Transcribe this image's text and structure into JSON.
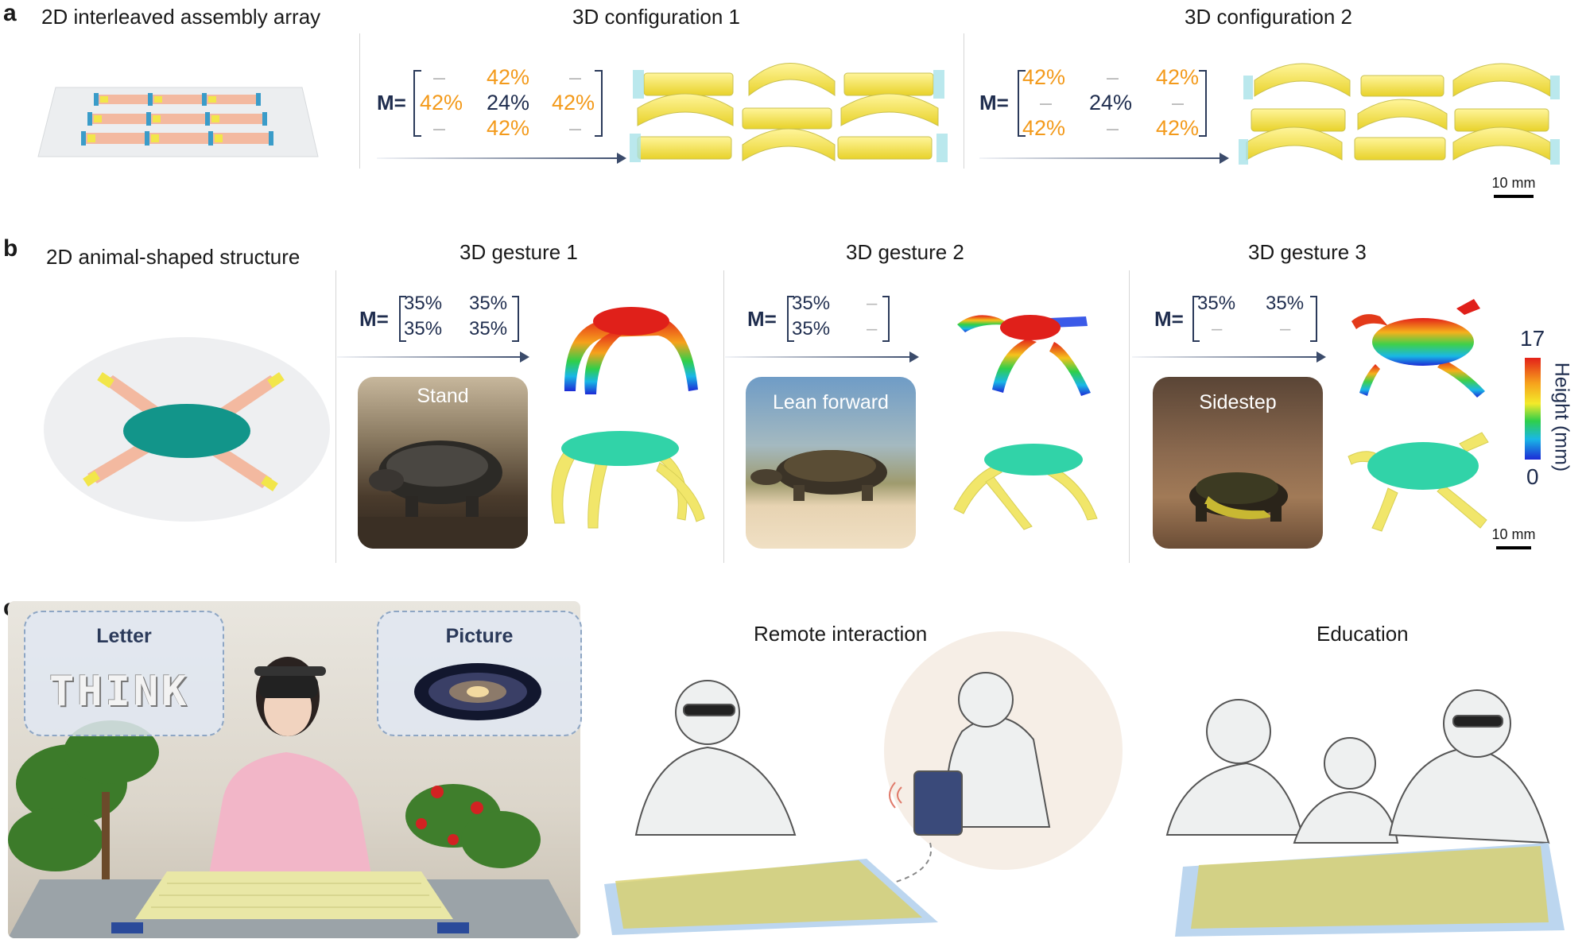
{
  "panels": {
    "a": {
      "letter": "a",
      "title_2d": "2D interleaved assembly array",
      "config1": {
        "title": "3D configuration 1",
        "m_label": "M=",
        "cells": [
          "–",
          "42%",
          "–",
          "42%",
          "24%",
          "42%",
          "–",
          "42%",
          "–"
        ]
      },
      "config2": {
        "title": "3D configuration 2",
        "m_label": "M=",
        "cells": [
          "42%",
          "–",
          "42%",
          "–",
          "24%",
          "–",
          "42%",
          "–",
          "42%"
        ]
      },
      "scale": "10 mm"
    },
    "b": {
      "letter": "b",
      "title_2d": "2D animal-shaped structure",
      "gesture1": {
        "title": "3D gesture 1",
        "m_label": "M=",
        "cells": [
          "35%",
          "35%",
          "35%",
          "35%"
        ],
        "photo_label": "Stand"
      },
      "gesture2": {
        "title": "3D gesture 2",
        "m_label": "M=",
        "cells": [
          "35%",
          "–",
          "35%",
          "–"
        ],
        "photo_label": "Lean forward"
      },
      "gesture3": {
        "title": "3D gesture 3",
        "m_label": "M=",
        "cells": [
          "35%",
          "35%",
          "–",
          "–"
        ],
        "photo_label": "Sidestep"
      },
      "colorbar": {
        "max": "17",
        "min": "0",
        "label": "Height (mm)"
      },
      "scale": "10 mm"
    },
    "c": {
      "letter": "c",
      "bubble_letter": "Letter",
      "bubble_letter_text": "THINK",
      "bubble_picture": "Picture",
      "remote_title": "Remote interaction",
      "education_title": "Education"
    }
  },
  "colors": {
    "orange": "#f39a1b",
    "navy": "#1f2d4e",
    "strip_yellow": "#f2e64a",
    "strip_pink": "#f3b9a0",
    "teal_disk": "#12958a"
  }
}
